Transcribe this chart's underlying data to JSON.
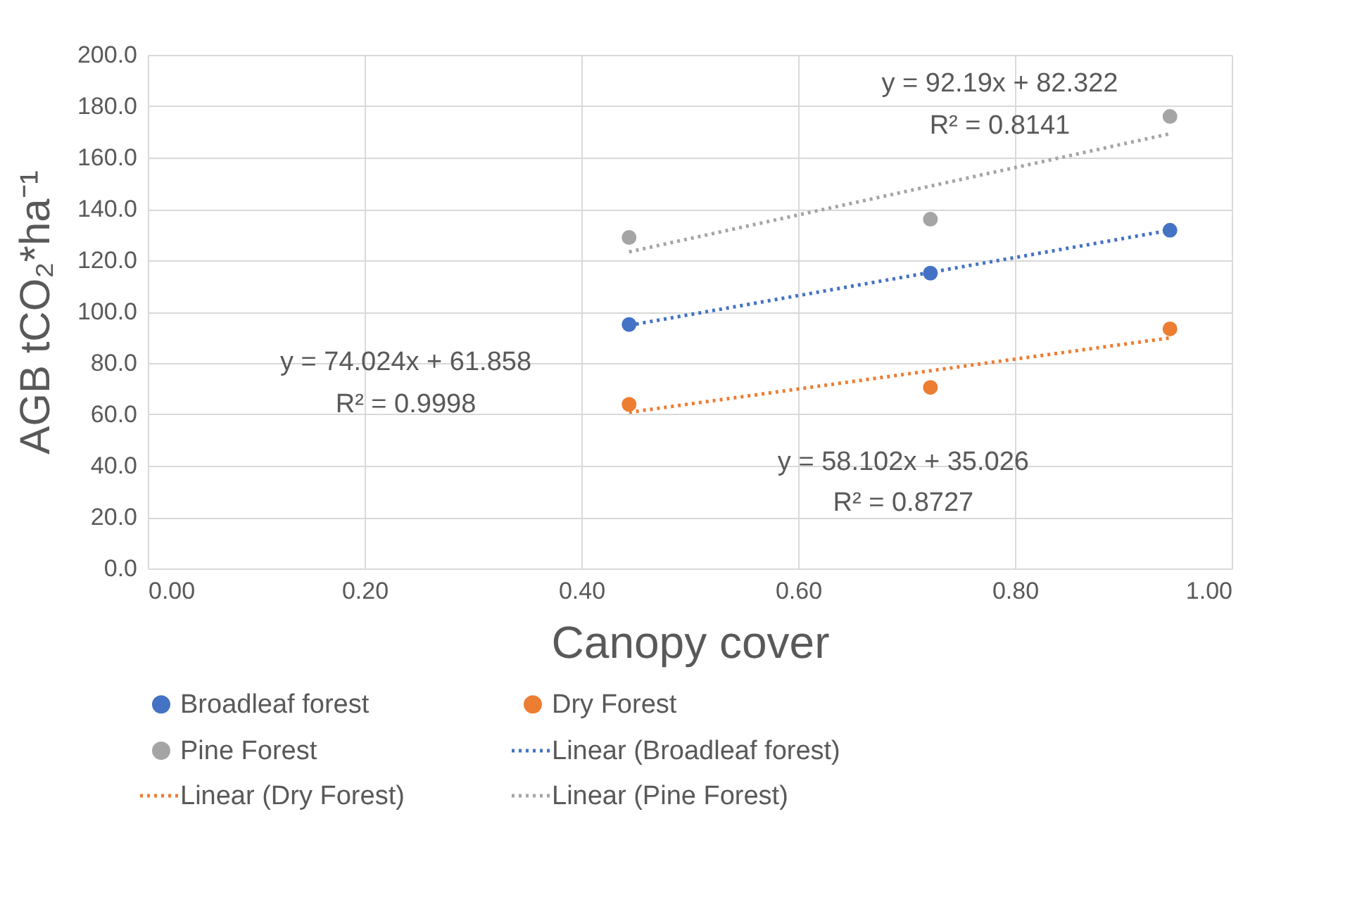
{
  "chart_data": {
    "type": "scatter",
    "xlabel": "Canopy cover",
    "ylabel": "AGB tCO₂*ha⁻¹",
    "x": [
      0.444,
      0.722,
      0.943
    ],
    "series": [
      {
        "name": "Broadleaf forest",
        "color": "#4472c4",
        "values": [
          95,
          115,
          131.7
        ]
      },
      {
        "name": "Dry Forest",
        "color": "#ed7d31",
        "values": [
          63.9,
          70.5,
          93.3
        ]
      },
      {
        "name": "Pine Forest",
        "color": "#a5a5a5",
        "values": [
          128.9,
          136,
          176
        ]
      },
      {
        "name": "Linear (Broadleaf forest)",
        "type": "line",
        "marker": "none",
        "line_style": "dotted",
        "color": "#4472c4",
        "values": [
          94.7,
          115.3,
          131.7
        ]
      },
      {
        "name": "Linear (Dry Forest)",
        "type": "line",
        "marker": "none",
        "line_style": "dotted",
        "color": "#ed7d31",
        "values": [
          60.8,
          77,
          89.8
        ]
      },
      {
        "name": "Linear (Pine Forest)",
        "type": "line",
        "marker": "none",
        "line_style": "dotted",
        "color": "#a5a5a5",
        "values": [
          123.3,
          148.9,
          169.3
        ]
      }
    ],
    "annotations": [
      "y = 92.19x + 82.322",
      "R² = 0.8141",
      "y = 74.024x + 61.858",
      "R² = 0.9998",
      "y = 58.102x + 35.026",
      "R² = 0.8727"
    ],
    "xlim": [
      0,
      1
    ],
    "ylim": [
      0,
      200
    ],
    "xticks": [
      {
        "value": 0,
        "label": "0.00"
      },
      {
        "value": 0.2,
        "label": "0.20"
      },
      {
        "value": 0.4,
        "label": "0.40"
      },
      {
        "value": 0.6,
        "label": "0.60"
      },
      {
        "value": 0.8,
        "label": "0.80"
      },
      {
        "value": 1,
        "label": "1.00"
      }
    ],
    "yticks": [
      {
        "value": 0,
        "label": "0.0"
      },
      {
        "value": 20,
        "label": "20.0"
      },
      {
        "value": 40,
        "label": "40.0"
      },
      {
        "value": 60,
        "label": "60.0"
      },
      {
        "value": 80,
        "label": "80.0"
      },
      {
        "value": 100,
        "label": "100.0"
      },
      {
        "value": 120,
        "label": "120.0"
      },
      {
        "value": 140,
        "label": "140.0"
      },
      {
        "value": 160,
        "label": "160.0"
      },
      {
        "value": 180,
        "label": "180.0"
      },
      {
        "value": 200,
        "label": "200.0"
      }
    ],
    "grid": true,
    "legend": "bottom",
    "marker": "circle"
  }
}
